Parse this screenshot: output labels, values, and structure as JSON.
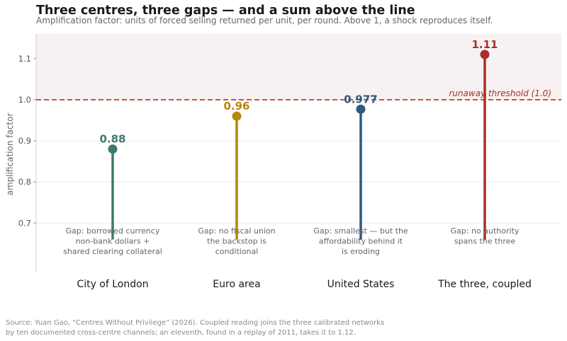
{
  "chart_data": {
    "type": "lollipop",
    "title": "Three centres, three gaps — and a sum above the line",
    "subtitle": "Amplification factor: units of forced selling returned per unit, per round. Above 1, a shock reproduces itself.",
    "ylabel": "amplification factor",
    "xlabel": "",
    "ylim": [
      0.58,
      1.16
    ],
    "yticks": [
      0.7,
      0.8,
      0.9,
      1.0,
      1.1
    ],
    "ytick_labels": [
      "0.7",
      "0.8",
      "0.9",
      "1.0",
      "1.1"
    ],
    "stem_base": 0.66,
    "grid": true,
    "categories": [
      "City of London",
      "Euro area",
      "United States",
      "The three, coupled"
    ],
    "values": [
      0.88,
      0.96,
      0.977,
      1.11
    ],
    "value_labels": [
      "0.88",
      "0.96",
      "0.977",
      "1.11"
    ],
    "colors": [
      "#3d7a70",
      "#b8860b",
      "#2e5a80",
      "#a3312e"
    ],
    "notes": [
      [
        "Gap: borrowed currency",
        "non-bank dollars +",
        "shared clearing collateral"
      ],
      [
        "Gap: no fiscal union",
        "the backstop is",
        "conditional"
      ],
      [
        "Gap: smallest — but the",
        "affordability behind it",
        "is eroding"
      ],
      [
        "Gap: no authority",
        "spans the three"
      ]
    ],
    "threshold": {
      "value": 1.0,
      "label": "runaway threshold (1.0)",
      "color": "#c03a34"
    },
    "shade_above_threshold": "#f8f1f1",
    "source": [
      "Source: Yuan Gao, “Centres Without Privilege” (2026). Coupled reading joins the three calibrated networks",
      "by ten documented cross-centre channels; an eleventh, found in a replay of 2011, takes it to 1.12."
    ]
  }
}
